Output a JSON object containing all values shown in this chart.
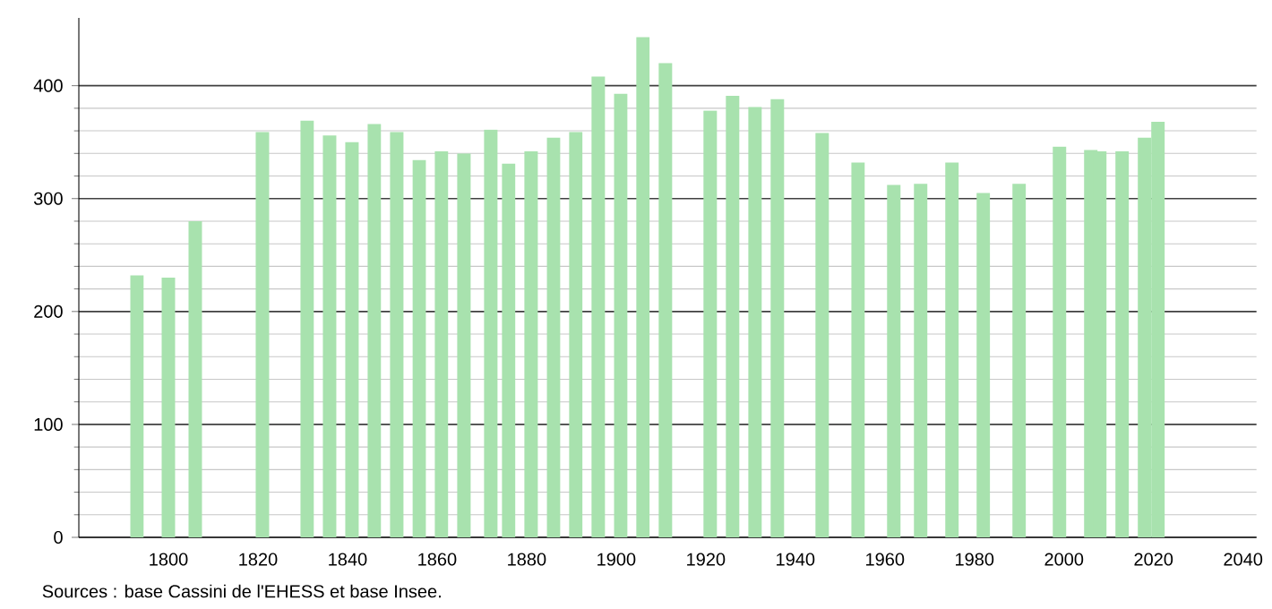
{
  "chart_data": {
    "type": "bar",
    "x": [
      1793,
      1800,
      1806,
      1821,
      1831,
      1836,
      1841,
      1846,
      1851,
      1856,
      1861,
      1866,
      1872,
      1876,
      1881,
      1886,
      1891,
      1896,
      1901,
      1906,
      1911,
      1921,
      1926,
      1931,
      1936,
      1946,
      1954,
      1962,
      1968,
      1975,
      1982,
      1990,
      1999,
      2006,
      2008,
      2013,
      2018,
      2021
    ],
    "values": [
      232,
      230,
      280,
      359,
      369,
      356,
      350,
      366,
      359,
      334,
      342,
      340,
      361,
      331,
      342,
      354,
      359,
      408,
      393,
      443,
      420,
      378,
      391,
      381,
      388,
      358,
      332,
      312,
      313,
      332,
      305,
      313,
      346,
      343,
      342,
      342,
      354,
      368
    ],
    "color": "#a8e2ae",
    "xlim": [
      1780,
      2043
    ],
    "ylim": [
      0,
      460
    ],
    "xticks": [
      1800,
      1820,
      1840,
      1860,
      1880,
      1900,
      1920,
      1940,
      1960,
      1980,
      2000,
      2020,
      2040
    ],
    "yticks": [
      0,
      100,
      200,
      300,
      400
    ],
    "grid": "y",
    "annotations": [
      "Sources : base Cassini de l'EHESS et base Insee."
    ]
  }
}
